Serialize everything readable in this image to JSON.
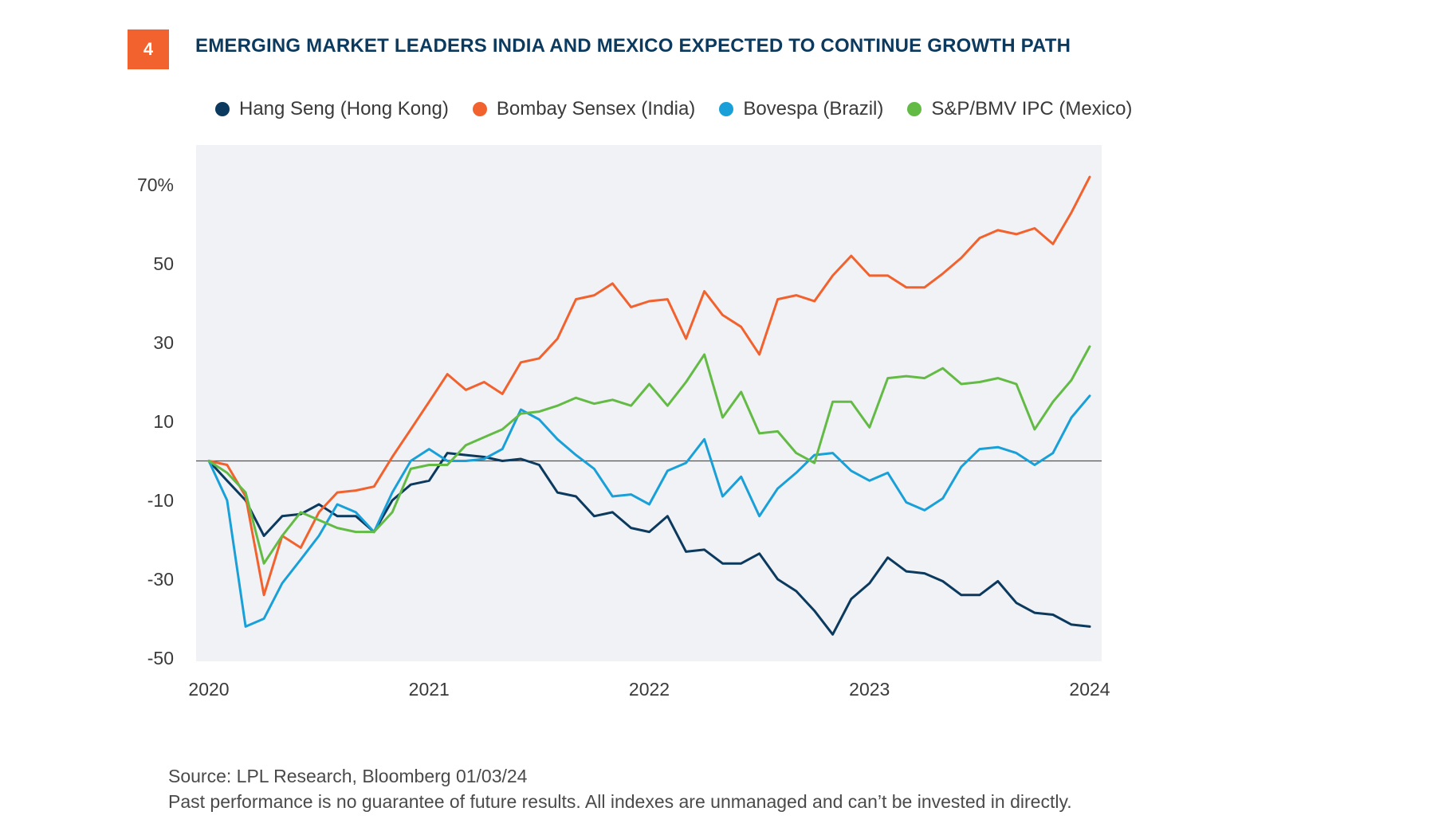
{
  "figure": {
    "number": "4",
    "title": "EMERGING MARKET LEADERS INDIA AND MEXICO EXPECTED TO CONTINUE GROWTH PATH",
    "accent_color": "#f2622e",
    "title_color": "#0b3a5e"
  },
  "footer": {
    "source": "Source: LPL Research, Bloomberg 01/03/24",
    "disclaimer": "Past performance is no guarantee of future results. All indexes are unmanaged and can’t be invested in directly."
  },
  "chart_data": {
    "type": "line",
    "title": "",
    "xlabel": "",
    "ylabel": "",
    "x_ticks": [
      "2020",
      "2021",
      "2022",
      "2023",
      "2024"
    ],
    "y_ticks": [
      -50,
      -30,
      -10,
      10,
      30,
      50,
      70
    ],
    "y_tick_labels": [
      "-50",
      "-30",
      "-10",
      "10",
      "30",
      "50",
      "70%"
    ],
    "ylim": [
      -50,
      75
    ],
    "xlim": [
      2020,
      2024
    ],
    "grid": false,
    "zero_line": true,
    "plot_background": "#f1f2f5",
    "legend_position": "top",
    "x": [
      2020.0,
      2020.083,
      2020.167,
      2020.25,
      2020.333,
      2020.417,
      2020.5,
      2020.583,
      2020.667,
      2020.75,
      2020.833,
      2020.917,
      2021.0,
      2021.083,
      2021.167,
      2021.25,
      2021.333,
      2021.417,
      2021.5,
      2021.583,
      2021.667,
      2021.75,
      2021.833,
      2021.917,
      2022.0,
      2022.083,
      2022.167,
      2022.25,
      2022.333,
      2022.417,
      2022.5,
      2022.583,
      2022.667,
      2022.75,
      2022.833,
      2022.917,
      2023.0,
      2023.083,
      2023.167,
      2023.25,
      2023.333,
      2023.417,
      2023.5,
      2023.583,
      2023.667,
      2023.75,
      2023.833,
      2023.917,
      2024.0
    ],
    "series": [
      {
        "name": "Hang Seng (Hong Kong)",
        "color": "#0b3a5e",
        "values": [
          0,
          -5,
          -10,
          -19,
          -14,
          -13.5,
          -11,
          -14,
          -14,
          -18,
          -10,
          -6,
          -5,
          2,
          1.5,
          1,
          0,
          0.5,
          -1,
          -8,
          -9,
          -14,
          -13,
          -17,
          -18,
          -14,
          -23,
          -22.5,
          -26,
          -26,
          -23.5,
          -30,
          -33,
          -38,
          -44,
          -35,
          -31,
          -24.5,
          -28,
          -28.5,
          -30.5,
          -34,
          -34,
          -30.5,
          -36,
          -38.5,
          -39,
          -41.5,
          -42
        ]
      },
      {
        "name": "Bombay Sensex (India)",
        "color": "#f2622e",
        "values": [
          0,
          -1,
          -9,
          -34,
          -19,
          -22,
          -13,
          -8,
          -7.5,
          -6.5,
          1,
          8,
          15,
          22,
          18,
          20,
          17,
          25,
          26,
          31,
          41,
          42,
          45,
          39,
          40.5,
          41,
          31,
          43,
          37,
          34,
          27,
          41,
          42,
          40.5,
          47,
          52,
          47,
          47,
          44,
          44,
          47.5,
          51.5,
          56.5,
          58.5,
          57.5,
          59,
          55,
          63,
          72
        ]
      },
      {
        "name": "Bovespa (Brazil)",
        "color": "#1aa0d8",
        "values": [
          0,
          -10,
          -42,
          -40,
          -31,
          -25,
          -19,
          -11,
          -13,
          -18,
          -8,
          0,
          3,
          0,
          0,
          0.5,
          3,
          13,
          10.5,
          5.5,
          1.5,
          -2,
          -9,
          -8.5,
          -11,
          -2.5,
          -0.5,
          5.5,
          -9,
          -4,
          -14,
          -7,
          -3,
          1.5,
          2,
          -2.5,
          -5,
          -3,
          -10.5,
          -12.5,
          -9.5,
          -1.5,
          3,
          3.5,
          2,
          -1,
          2,
          11,
          16.5
        ]
      },
      {
        "name": "S&P/BMV IPC (Mexico)",
        "color": "#63bb46",
        "values": [
          0,
          -3,
          -8,
          -26,
          -19,
          -13,
          -15,
          -17,
          -18,
          -18,
          -13,
          -2,
          -1,
          -1,
          4,
          6,
          8,
          12,
          12.5,
          14,
          16,
          14.5,
          15.5,
          14,
          19.5,
          14,
          20,
          27,
          11,
          17.5,
          7,
          7.5,
          2,
          -0.5,
          15,
          15,
          8.5,
          21,
          21.5,
          21,
          23.5,
          19.5,
          20,
          21,
          19.5,
          8,
          15,
          20.5,
          29
        ]
      }
    ]
  }
}
